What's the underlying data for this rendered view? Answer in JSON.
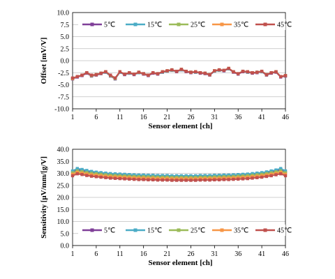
{
  "chart_data": [
    {
      "type": "line",
      "xlabel": "Sensor element [ch]",
      "ylabel": "Offset [mV/V]",
      "xlim": [
        1,
        46
      ],
      "ylim": [
        -10.0,
        10.0
      ],
      "xticks": [
        1,
        6,
        11,
        16,
        21,
        26,
        31,
        36,
        41,
        46
      ],
      "yticks": [
        -10.0,
        -7.5,
        -5.0,
        -2.5,
        0.0,
        2.5,
        5.0,
        7.5,
        10.0
      ],
      "ytick_labels": [
        "-10.0",
        "-7.5",
        "-5.0",
        "-2.5",
        "0.0",
        "2.5",
        "5.0",
        "7.5",
        "10.0"
      ],
      "grid": "horizontal",
      "legend_position": "top",
      "x": [
        1,
        2,
        3,
        4,
        5,
        6,
        7,
        8,
        9,
        10,
        11,
        12,
        13,
        14,
        15,
        16,
        17,
        18,
        19,
        20,
        21,
        22,
        23,
        24,
        25,
        26,
        27,
        28,
        29,
        30,
        31,
        32,
        33,
        34,
        35,
        36,
        37,
        38,
        39,
        40,
        41,
        42,
        43,
        44,
        45,
        46
      ],
      "series": [
        {
          "name": "5℃",
          "color": "#7f3f98",
          "values": [
            -3.8,
            -3.4,
            -3.1,
            -2.6,
            -3.2,
            -3.0,
            -2.7,
            -2.4,
            -3.2,
            -3.8,
            -2.4,
            -2.9,
            -2.6,
            -2.9,
            -2.5,
            -2.8,
            -3.1,
            -2.6,
            -2.8,
            -2.4,
            -2.2,
            -2.0,
            -2.3,
            -1.9,
            -2.3,
            -2.5,
            -2.4,
            -2.6,
            -2.7,
            -3.0,
            -2.2,
            -2.0,
            -2.1,
            -1.7,
            -2.4,
            -2.8,
            -2.3,
            -2.4,
            -2.6,
            -2.5,
            -2.3,
            -3.0,
            -2.6,
            -2.4,
            -3.4,
            -3.2
          ]
        },
        {
          "name": "15℃",
          "color": "#4bacc6",
          "values": [
            -3.7,
            -3.3,
            -3.0,
            -2.5,
            -3.1,
            -2.9,
            -2.6,
            -2.4,
            -3.1,
            -3.7,
            -2.4,
            -2.8,
            -2.6,
            -2.8,
            -2.5,
            -2.7,
            -3.0,
            -2.5,
            -2.7,
            -2.4,
            -2.2,
            -2.0,
            -2.2,
            -1.9,
            -2.2,
            -2.4,
            -2.4,
            -2.5,
            -2.6,
            -2.9,
            -2.2,
            -2.0,
            -2.0,
            -1.7,
            -2.3,
            -2.7,
            -2.2,
            -2.4,
            -2.5,
            -2.4,
            -2.3,
            -2.9,
            -2.5,
            -2.3,
            -3.3,
            -3.1
          ]
        },
        {
          "name": "25℃",
          "color": "#9bbb59",
          "values": [
            -3.7,
            -3.3,
            -3.0,
            -2.5,
            -3.1,
            -2.9,
            -2.6,
            -2.3,
            -3.1,
            -3.7,
            -2.3,
            -2.8,
            -2.5,
            -2.8,
            -2.4,
            -2.7,
            -3.0,
            -2.5,
            -2.7,
            -2.3,
            -2.1,
            -1.9,
            -2.2,
            -1.8,
            -2.2,
            -2.4,
            -2.3,
            -2.5,
            -2.6,
            -2.9,
            -2.1,
            -1.9,
            -2.0,
            -1.6,
            -2.3,
            -2.7,
            -2.2,
            -2.3,
            -2.5,
            -2.4,
            -2.2,
            -2.9,
            -2.5,
            -2.3,
            -3.3,
            -3.1
          ]
        },
        {
          "name": "35℃",
          "color": "#f79646",
          "values": [
            -3.7,
            -3.3,
            -3.0,
            -2.5,
            -3.0,
            -2.9,
            -2.6,
            -2.3,
            -3.0,
            -3.6,
            -2.3,
            -2.8,
            -2.5,
            -2.8,
            -2.4,
            -2.7,
            -3.0,
            -2.5,
            -2.7,
            -2.3,
            -2.1,
            -1.9,
            -2.2,
            -1.8,
            -2.2,
            -2.4,
            -2.3,
            -2.5,
            -2.6,
            -2.9,
            -2.1,
            -1.9,
            -2.0,
            -1.6,
            -2.3,
            -2.7,
            -2.2,
            -2.3,
            -2.5,
            -2.4,
            -2.2,
            -2.9,
            -2.5,
            -2.3,
            -3.3,
            -3.1
          ]
        },
        {
          "name": "45℃",
          "color": "#c0504d",
          "values": [
            -3.6,
            -3.3,
            -3.0,
            -2.5,
            -3.0,
            -2.9,
            -2.6,
            -2.3,
            -3.0,
            -3.6,
            -2.3,
            -2.8,
            -2.5,
            -2.8,
            -2.4,
            -2.7,
            -3.0,
            -2.5,
            -2.7,
            -2.3,
            -2.1,
            -1.9,
            -2.2,
            -1.8,
            -2.2,
            -2.4,
            -2.3,
            -2.5,
            -2.6,
            -2.9,
            -2.1,
            -1.9,
            -2.0,
            -1.6,
            -2.3,
            -2.7,
            -2.2,
            -2.3,
            -2.5,
            -2.4,
            -2.2,
            -2.9,
            -2.5,
            -2.3,
            -3.3,
            -3.1
          ]
        }
      ]
    },
    {
      "type": "line",
      "xlabel": "Sensor element [ch]",
      "ylabel": "Sensitivity [μV/mm/[g/V]",
      "xlim": [
        1,
        46
      ],
      "ylim": [
        0.0,
        40.0
      ],
      "xticks": [
        1,
        6,
        11,
        16,
        21,
        26,
        31,
        36,
        41,
        46
      ],
      "yticks": [
        0,
        5,
        10,
        15,
        20,
        25,
        30,
        35,
        40
      ],
      "ytick_labels": [
        "0.0",
        "5.0",
        "10.0",
        "15.0",
        "20.0",
        "25.0",
        "30.0",
        "35.0",
        "40.0"
      ],
      "grid": "horizontal",
      "legend_position": "bottom",
      "x": [
        1,
        2,
        3,
        4,
        5,
        6,
        7,
        8,
        9,
        10,
        11,
        12,
        13,
        14,
        15,
        16,
        17,
        18,
        19,
        20,
        21,
        22,
        23,
        24,
        25,
        26,
        27,
        28,
        29,
        30,
        31,
        32,
        33,
        34,
        35,
        36,
        37,
        38,
        39,
        40,
        41,
        42,
        43,
        44,
        45,
        46
      ],
      "series": [
        {
          "name": "5℃",
          "color": "#7f3f98",
          "values": [
            30.6,
            31.6,
            31.2,
            30.8,
            30.4,
            30.2,
            30.0,
            29.8,
            29.6,
            29.5,
            29.4,
            29.3,
            29.2,
            29.1,
            29.0,
            29.0,
            28.9,
            28.9,
            28.8,
            28.8,
            28.8,
            28.7,
            28.7,
            28.7,
            28.7,
            28.7,
            28.7,
            28.8,
            28.8,
            28.8,
            28.9,
            28.9,
            29.0,
            29.0,
            29.1,
            29.2,
            29.3,
            29.4,
            29.6,
            29.8,
            30.0,
            30.3,
            30.6,
            31.0,
            31.6,
            30.6
          ]
        },
        {
          "name": "15℃",
          "color": "#4bacc6",
          "values": [
            31.0,
            32.0,
            31.6,
            31.2,
            30.8,
            30.5,
            30.3,
            30.1,
            29.9,
            29.8,
            29.7,
            29.6,
            29.5,
            29.4,
            29.3,
            29.3,
            29.2,
            29.2,
            29.1,
            29.1,
            29.1,
            29.0,
            29.0,
            29.0,
            29.0,
            29.0,
            29.0,
            29.1,
            29.1,
            29.1,
            29.2,
            29.2,
            29.3,
            29.3,
            29.4,
            29.5,
            29.6,
            29.7,
            29.9,
            30.1,
            30.3,
            30.6,
            31.0,
            31.4,
            32.0,
            31.0
          ]
        },
        {
          "name": "25℃",
          "color": "#9bbb59",
          "values": [
            30.2,
            31.0,
            30.7,
            30.3,
            30.0,
            29.8,
            29.6,
            29.4,
            29.2,
            29.1,
            29.0,
            28.9,
            28.8,
            28.7,
            28.6,
            28.6,
            28.5,
            28.5,
            28.4,
            28.4,
            28.4,
            28.3,
            28.3,
            28.3,
            28.3,
            28.3,
            28.3,
            28.4,
            28.4,
            28.4,
            28.5,
            28.5,
            28.6,
            28.6,
            28.7,
            28.8,
            28.9,
            29.0,
            29.2,
            29.4,
            29.6,
            29.9,
            30.2,
            30.6,
            31.0,
            30.2
          ]
        },
        {
          "name": "35℃",
          "color": "#f79646",
          "values": [
            29.6,
            30.4,
            30.1,
            29.7,
            29.4,
            29.2,
            29.0,
            28.8,
            28.6,
            28.5,
            28.4,
            28.3,
            28.2,
            28.1,
            28.0,
            28.0,
            27.9,
            27.9,
            27.8,
            27.8,
            27.8,
            27.7,
            27.7,
            27.7,
            27.7,
            27.7,
            27.7,
            27.8,
            27.8,
            27.8,
            27.9,
            27.9,
            28.0,
            28.0,
            28.1,
            28.2,
            28.3,
            28.4,
            28.6,
            28.8,
            29.0,
            29.3,
            29.6,
            30.0,
            30.4,
            29.6
          ]
        },
        {
          "name": "45℃",
          "color": "#c0504d",
          "values": [
            29.0,
            29.8,
            29.5,
            29.1,
            28.8,
            28.6,
            28.4,
            28.2,
            28.0,
            27.9,
            27.8,
            27.7,
            27.6,
            27.5,
            27.4,
            27.4,
            27.3,
            27.3,
            27.2,
            27.2,
            27.2,
            27.1,
            27.1,
            27.1,
            27.1,
            27.1,
            27.1,
            27.2,
            27.2,
            27.2,
            27.3,
            27.3,
            27.4,
            27.4,
            27.5,
            27.6,
            27.7,
            27.8,
            28.0,
            28.2,
            28.4,
            28.7,
            29.0,
            29.4,
            29.8,
            29.0
          ]
        }
      ]
    }
  ]
}
